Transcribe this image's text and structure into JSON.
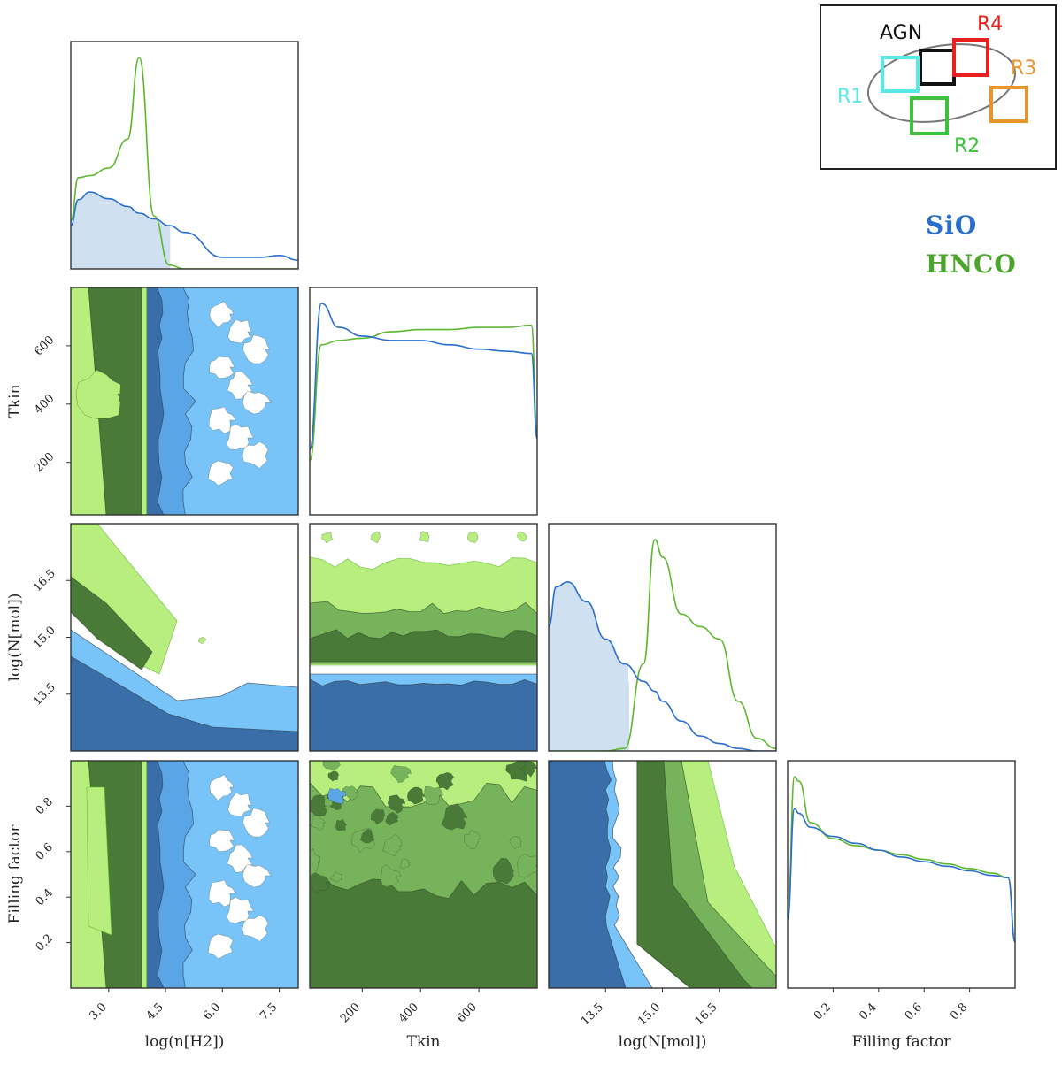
{
  "chart_data": {
    "type": "corner",
    "parameters": [
      "log(n[H2])",
      "Tkin",
      "log(N[mol])",
      "Filling factor"
    ],
    "ranges": [
      [
        2.0,
        8.0
      ],
      [
        20,
        800
      ],
      [
        12.0,
        18.0
      ],
      [
        0.0,
        1.0
      ]
    ],
    "ticks": {
      "log(n[H2])": [
        "3.0",
        "4.5",
        "6.0",
        "7.5"
      ],
      "Tkin": [
        "200",
        "400",
        "600"
      ],
      "log(N[mol])": [
        "13.5",
        "15.0",
        "16.5"
      ],
      "Filling factor": [
        "0.2",
        "0.4",
        "0.6",
        "0.8"
      ]
    },
    "series": [
      {
        "name": "SiO",
        "color": "#2a6fce"
      },
      {
        "name": "HNCO",
        "color": "#4aa52a"
      }
    ],
    "marginals": {
      "log(n[H2])": {
        "x": [
          2.0,
          2.2,
          2.5,
          3.0,
          3.5,
          3.8,
          4.2,
          4.6,
          5.0,
          6.0,
          7.0,
          7.5,
          8.0
        ],
        "SiO": [
          0.45,
          0.72,
          0.8,
          0.73,
          0.65,
          0.58,
          0.52,
          0.45,
          0.38,
          0.12,
          0.12,
          0.14,
          0.09
        ],
        "HNCO": [
          0.5,
          0.95,
          0.97,
          1.05,
          1.35,
          2.2,
          0.55,
          0.04,
          0.0,
          0.0,
          0.0,
          0.0,
          0.0
        ]
      },
      "Tkin": {
        "x": [
          20,
          60,
          120,
          200,
          300,
          400,
          500,
          600,
          700,
          780,
          800
        ],
        "SiO": [
          0.3,
          0.97,
          0.86,
          0.82,
          0.8,
          0.8,
          0.78,
          0.76,
          0.75,
          0.74,
          0.35
        ],
        "HNCO": [
          0.25,
          0.78,
          0.8,
          0.81,
          0.84,
          0.85,
          0.85,
          0.86,
          0.86,
          0.87,
          0.38
        ]
      },
      "log(N[mol])": {
        "x": [
          12.0,
          12.2,
          12.5,
          13.0,
          13.5,
          14.0,
          14.5,
          14.8,
          15.0,
          15.5,
          16.0,
          16.5,
          17.0,
          17.5,
          18.0
        ],
        "SiO": [
          0.5,
          0.66,
          0.68,
          0.6,
          0.45,
          0.35,
          0.28,
          0.24,
          0.2,
          0.12,
          0.06,
          0.03,
          0.01,
          0.0,
          0.0
        ],
        "HNCO": [
          0.0,
          0.0,
          0.0,
          0.0,
          0.0,
          0.01,
          0.35,
          0.85,
          0.78,
          0.55,
          0.5,
          0.45,
          0.2,
          0.05,
          0.01
        ]
      },
      "Filling factor": {
        "x": [
          0.0,
          0.03,
          0.05,
          0.1,
          0.2,
          0.3,
          0.4,
          0.5,
          0.6,
          0.7,
          0.8,
          0.9,
          0.97,
          1.0
        ],
        "SiO": [
          0.3,
          0.78,
          0.76,
          0.7,
          0.66,
          0.63,
          0.6,
          0.57,
          0.55,
          0.53,
          0.51,
          0.49,
          0.48,
          0.2
        ],
        "HNCO": [
          0.3,
          0.92,
          0.9,
          0.72,
          0.65,
          0.62,
          0.6,
          0.58,
          0.56,
          0.54,
          0.52,
          0.5,
          0.48,
          0.2
        ]
      }
    },
    "legend": {
      "position": "right",
      "entries": [
        "SiO",
        "HNCO"
      ]
    }
  },
  "inset": {
    "regions": [
      {
        "label": "AGN",
        "color": "#111111"
      },
      {
        "label": "R4",
        "color": "#e8201e"
      },
      {
        "label": "R3",
        "color": "#e8962a"
      },
      {
        "label": "R1",
        "color": "#58e8e8"
      },
      {
        "label": "R2",
        "color": "#3cc23c"
      }
    ]
  }
}
